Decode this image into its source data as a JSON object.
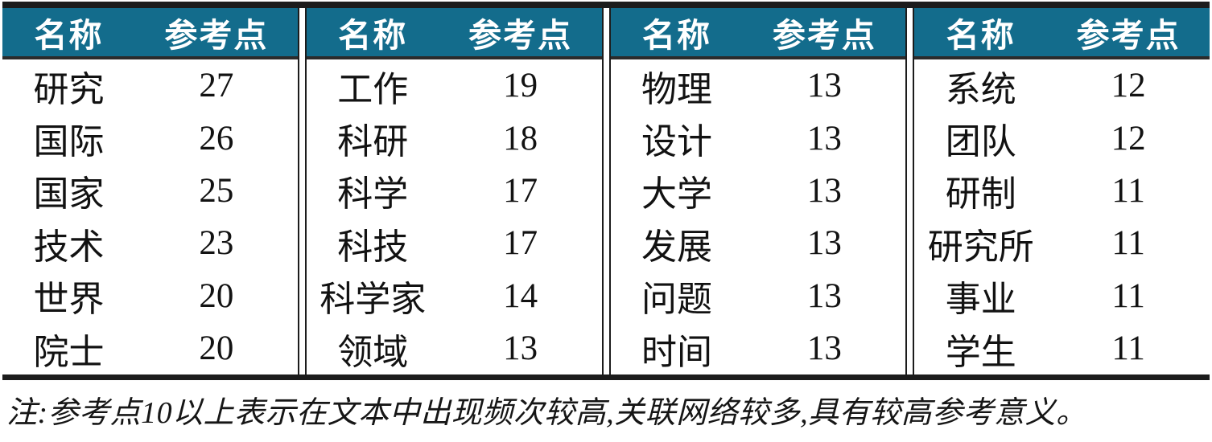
{
  "colors": {
    "header_bg": "#136c8c",
    "header_text": "#ffffff",
    "rule": "#1c1c1c",
    "body_text": "#121212"
  },
  "table": {
    "header": {
      "name": "名称",
      "value": "参考点"
    },
    "groups": [
      {
        "rows": [
          [
            "研究",
            "27"
          ],
          [
            "国际",
            "26"
          ],
          [
            "国家",
            "25"
          ],
          [
            "技术",
            "23"
          ],
          [
            "世界",
            "20"
          ],
          [
            "院士",
            "20"
          ]
        ]
      },
      {
        "rows": [
          [
            "工作",
            "19"
          ],
          [
            "科研",
            "18"
          ],
          [
            "科学",
            "17"
          ],
          [
            "科技",
            "17"
          ],
          [
            "科学家",
            "14"
          ],
          [
            "领域",
            "13"
          ]
        ]
      },
      {
        "rows": [
          [
            "物理",
            "13"
          ],
          [
            "设计",
            "13"
          ],
          [
            "大学",
            "13"
          ],
          [
            "发展",
            "13"
          ],
          [
            "问题",
            "13"
          ],
          [
            "时间",
            "13"
          ]
        ]
      },
      {
        "rows": [
          [
            "系统",
            "12"
          ],
          [
            "团队",
            "12"
          ],
          [
            "研制",
            "11"
          ],
          [
            "研究所",
            "11"
          ],
          [
            "事业",
            "11"
          ],
          [
            "学生",
            "11"
          ]
        ]
      }
    ],
    "note": "注:参考点10以上表示在文本中出现频次较高,关联网络较多,具有较高参考意义。"
  }
}
